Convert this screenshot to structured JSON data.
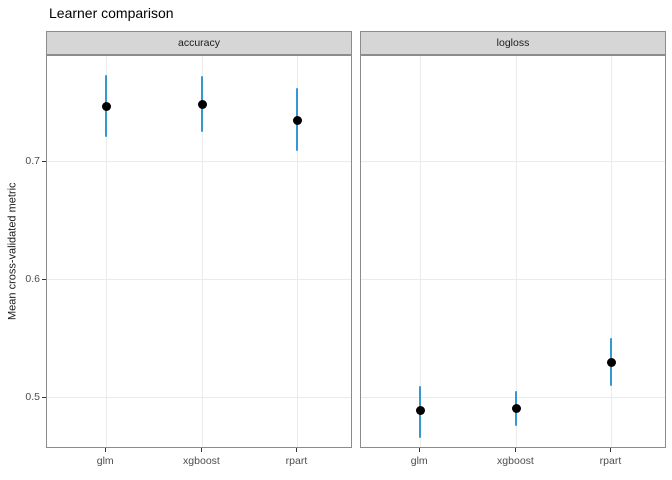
{
  "chart_data": {
    "type": "pointrange",
    "title": "Learner comparison",
    "ylabel": "Mean cross-validated metric",
    "xlabel": "",
    "legend": "none",
    "grid": "major-only",
    "categories": [
      "glm",
      "xgboost",
      "rpart"
    ],
    "y_ticks": [
      0.7,
      0.6,
      0.5
    ],
    "ylim": [
      0.4567,
      0.7898
    ],
    "facets": [
      {
        "label": "accuracy",
        "points": [
          {
            "category": "glm",
            "mean": 0.747,
            "lower": 0.721,
            "upper": 0.774
          },
          {
            "category": "xgboost",
            "mean": 0.749,
            "lower": 0.725,
            "upper": 0.773
          },
          {
            "category": "rpart",
            "mean": 0.735,
            "lower": 0.709,
            "upper": 0.763
          }
        ]
      },
      {
        "label": "logloss",
        "points": [
          {
            "category": "glm",
            "mean": 0.489,
            "lower": 0.466,
            "upper": 0.51
          },
          {
            "category": "xgboost",
            "mean": 0.491,
            "lower": 0.476,
            "upper": 0.506
          },
          {
            "category": "rpart",
            "mean": 0.53,
            "lower": 0.51,
            "upper": 0.551
          }
        ]
      }
    ],
    "colors": {
      "point": "#000000",
      "errorbar": "#3598d1",
      "strip_fill": "#d6d6d6",
      "border": "#8c8c8c",
      "gridline": "#ebebeb",
      "tick_label": "#4d4d4d",
      "text": "#1a1a1a"
    }
  }
}
